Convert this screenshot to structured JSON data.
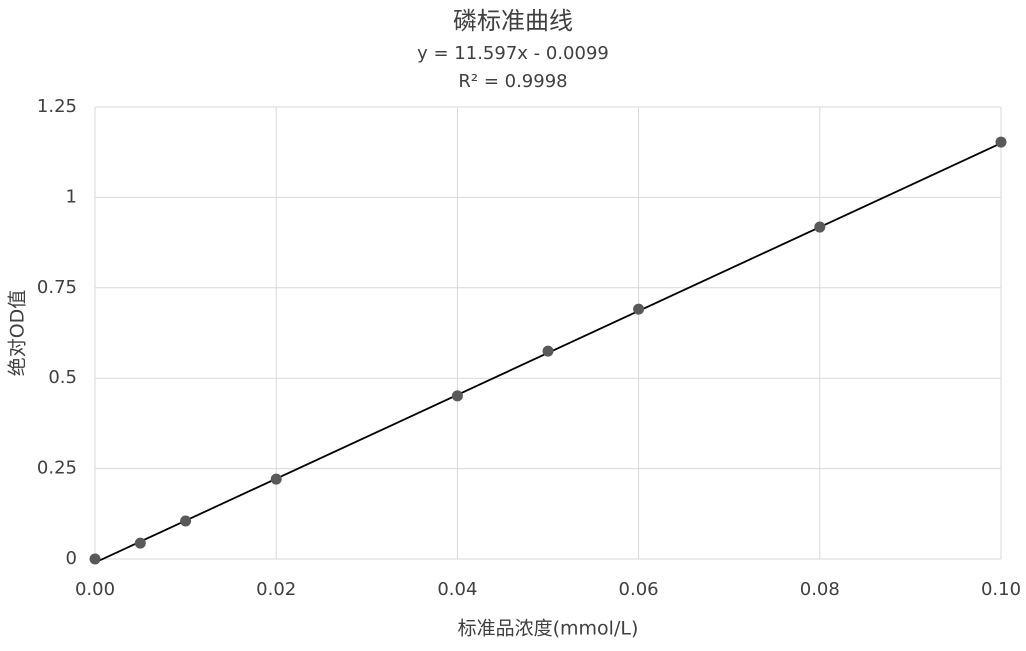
{
  "chart_data": {
    "type": "scatter",
    "title": "磷标准曲线",
    "annotations": [
      "y = 11.597x - 0.0099",
      "R² = 0.9998"
    ],
    "x_label": "标准品浓度(mmol/L)",
    "y_label": "绝对OD值",
    "x": [
      0,
      0.005,
      0.01,
      0.02,
      0.04,
      0.05,
      0.06,
      0.08,
      0.1
    ],
    "values": [
      0,
      0.044,
      0.105,
      0.221,
      0.451,
      0.575,
      0.691,
      0.918,
      1.153
    ],
    "color": "#595959",
    "trendline": {
      "slope": 11.597,
      "intercept": -0.0099,
      "color": "#000000"
    },
    "xlim": [
      0,
      0.1
    ],
    "xticks": [
      {
        "value": 0,
        "label": "0.00"
      },
      {
        "value": 0.02,
        "label": "0.02"
      },
      {
        "value": 0.04,
        "label": "0.04"
      },
      {
        "value": 0.06,
        "label": "0.06"
      },
      {
        "value": 0.08,
        "label": "0.08"
      },
      {
        "value": 0.1,
        "label": "0.10"
      }
    ],
    "ylim": [
      0,
      1.25
    ],
    "yticks": [
      0,
      0.25,
      0.5,
      0.75,
      1,
      1.25
    ],
    "grid": true
  }
}
